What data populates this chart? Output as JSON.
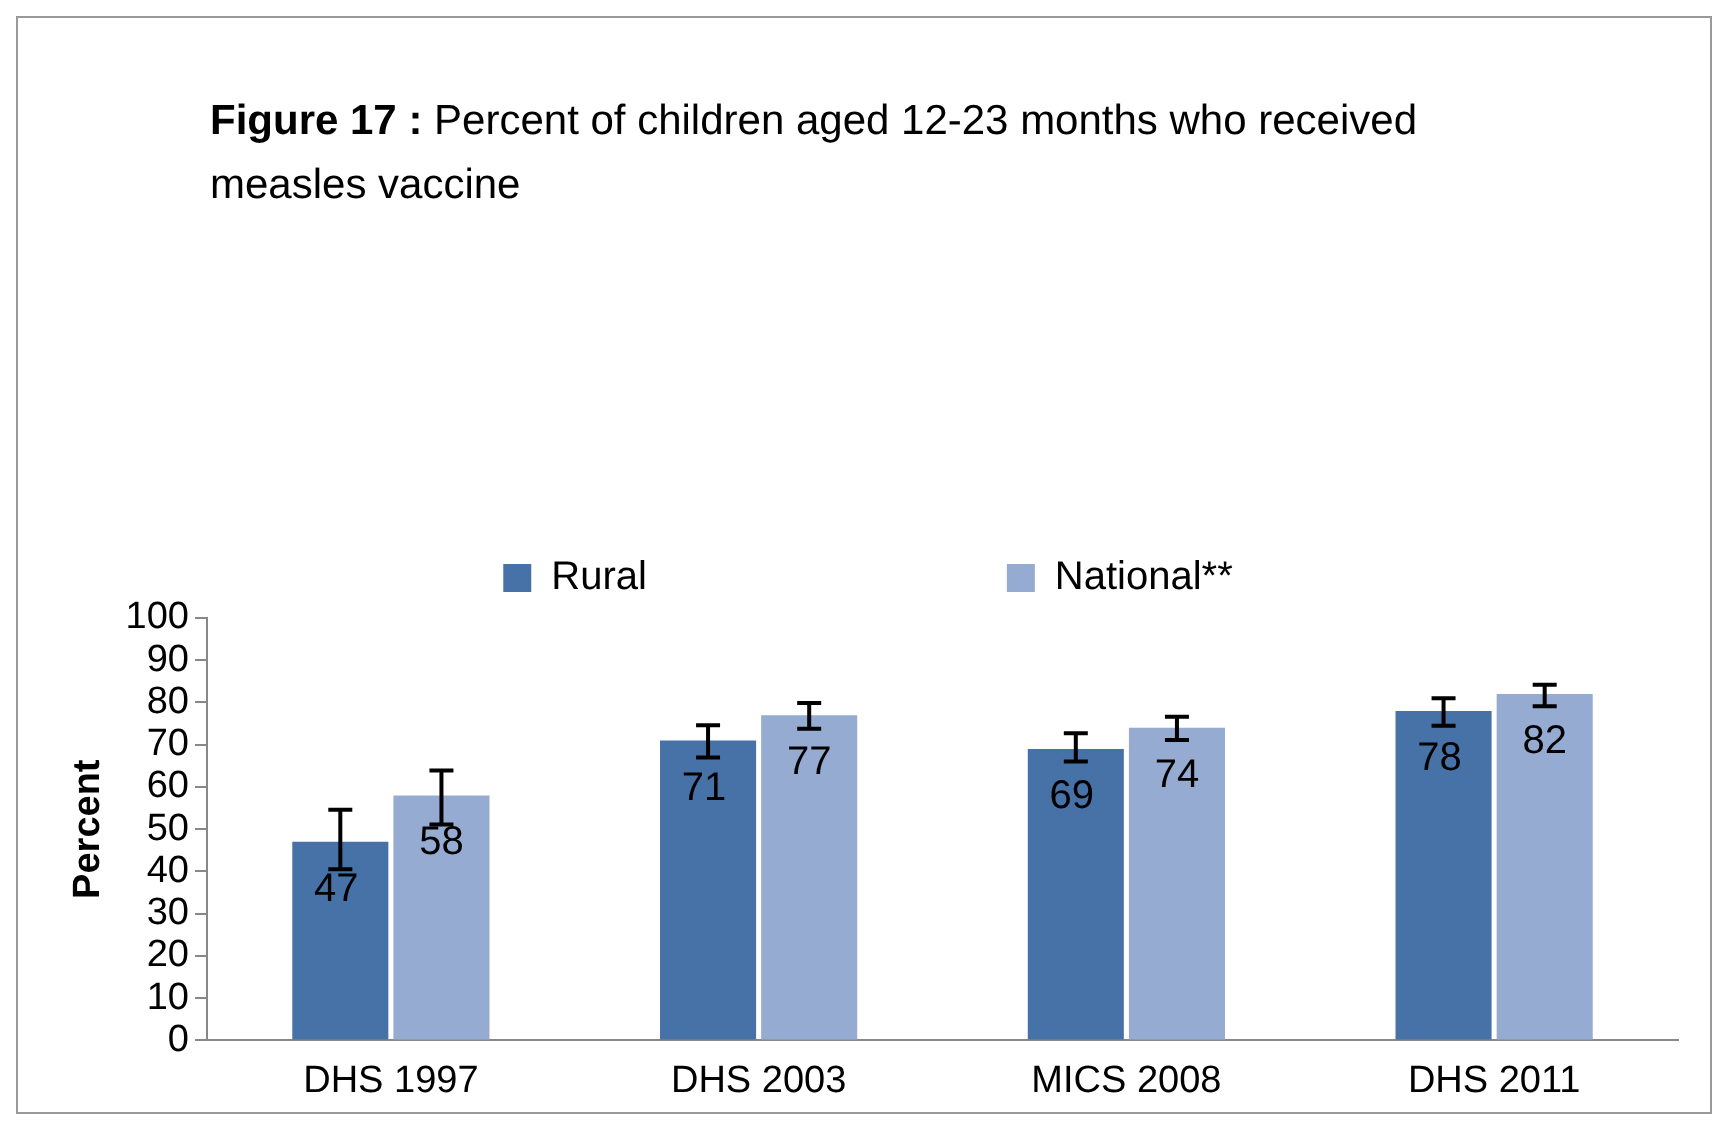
{
  "chart_data": {
    "type": "bar",
    "title": "Figure 17 : Percent of children aged 12-23 months who received measles vaccine",
    "ylabel": "Percent",
    "categories": [
      "DHS 1997",
      "DHS 2003",
      "MICS 2008",
      "DHS 2011"
    ],
    "series": [
      {
        "name": "Rural",
        "color": "#4672a8",
        "values": [
          47,
          71,
          69,
          78
        ],
        "errors": [
          [
            40.5,
            54.6
          ],
          [
            67.0,
            74.6
          ],
          [
            66.0,
            72.7
          ],
          [
            74.5,
            81.0
          ]
        ]
      },
      {
        "name": "National**",
        "color": "#95abd2",
        "values": [
          58,
          77,
          74,
          82
        ],
        "errors": [
          [
            51.1,
            63.9
          ],
          [
            73.8,
            79.9
          ],
          [
            71.1,
            76.6
          ],
          [
            79.1,
            84.2
          ]
        ]
      }
    ],
    "ylim": [
      0,
      100
    ],
    "yticks": [
      0,
      10,
      20,
      30,
      40,
      50,
      60,
      70,
      80,
      90,
      100
    ],
    "grid": false,
    "legend": "top",
    "data_labels": true
  }
}
